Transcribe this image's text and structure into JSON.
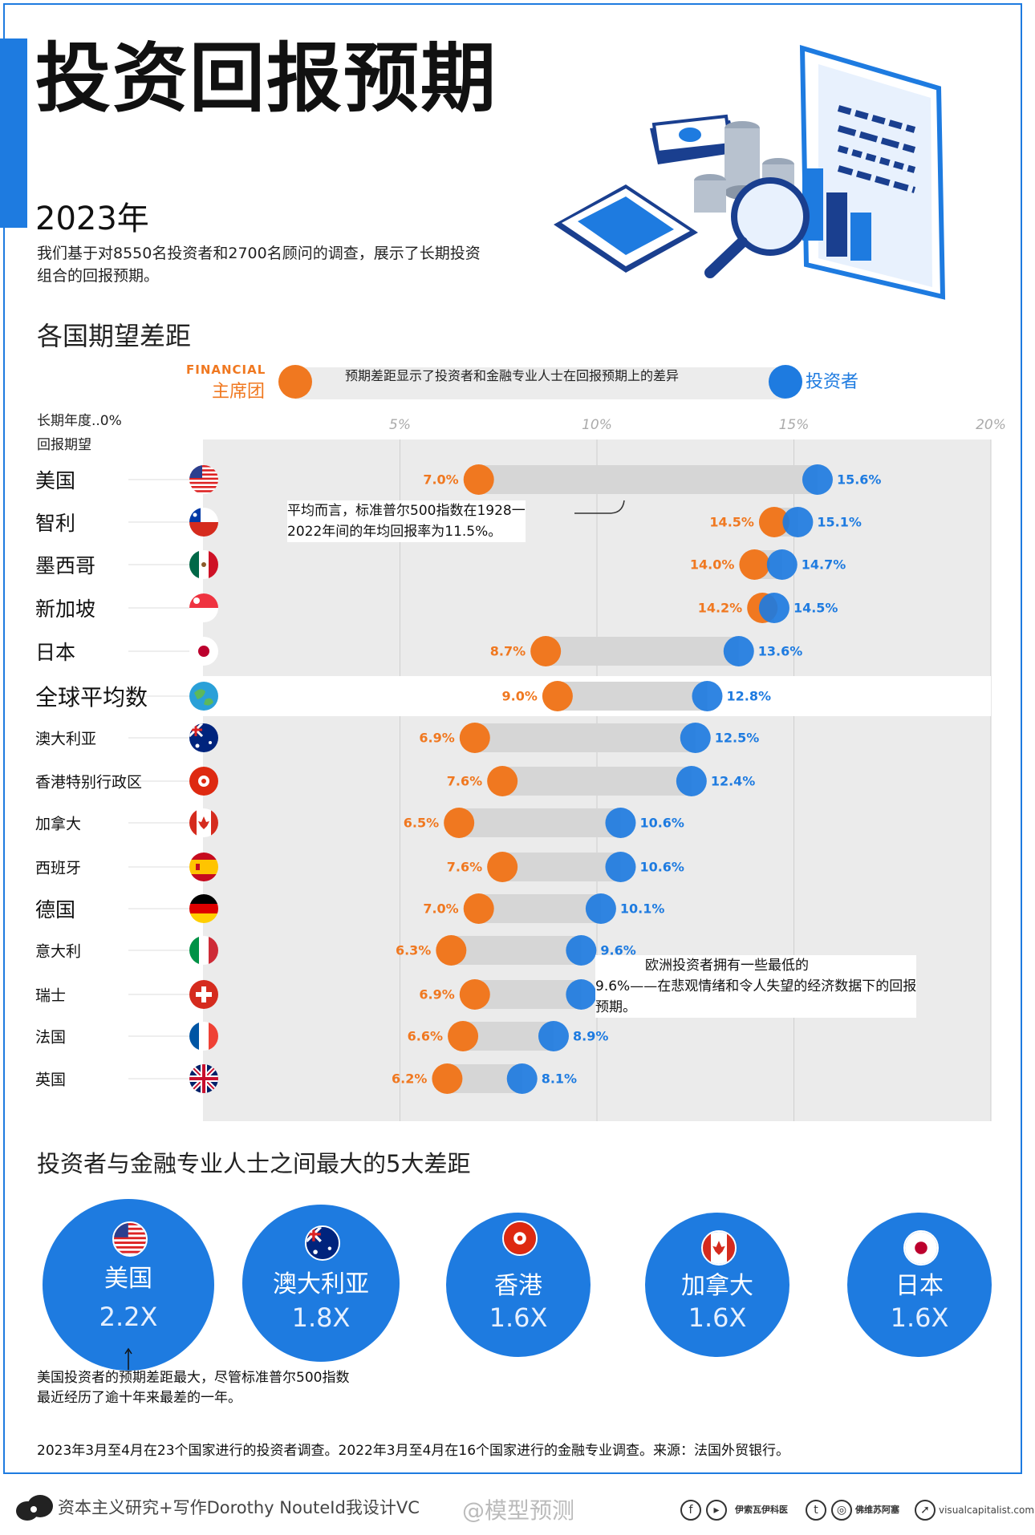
{
  "header": {
    "title": "投资回报预期",
    "year": "2023年",
    "intro": "我们基于对8550名投资者和2700名顾问的调查，展示了长期投资组合的回报预期。"
  },
  "section1_title": "各国期望差距",
  "legend": {
    "financial_en": "FINANCIAL",
    "financial_cn": "主席团",
    "description": "预期差距显示了投资者和金融专业人士在回报预期上的差异",
    "investor": "投资者",
    "colors": {
      "financial": "#f07820",
      "investor": "#1e7be0"
    }
  },
  "axis_caption": {
    "line1": "长期年度..0%",
    "line2": "回报期望"
  },
  "chart_data": {
    "type": "dumbbell",
    "xlim": [
      0,
      20
    ],
    "ticks": [
      "5%",
      "10%",
      "15%",
      "20%"
    ],
    "tick_values": [
      5,
      10,
      15,
      20
    ],
    "series": [
      {
        "name": "主席团",
        "color": "#f07820"
      },
      {
        "name": "投资者",
        "color": "#1e7be0"
      }
    ],
    "rows": [
      {
        "country": "美国",
        "flag": "us",
        "financial": 7.0,
        "investor": 15.6,
        "financial_label": "7.0%",
        "investor_label": "15.6%",
        "size": "big"
      },
      {
        "country": "智利",
        "flag": "cl",
        "financial": 14.5,
        "investor": 15.1,
        "financial_label": "14.5%",
        "investor_label": "15.1%",
        "size": "big"
      },
      {
        "country": "墨西哥",
        "flag": "mx",
        "financial": 14.0,
        "investor": 14.7,
        "financial_label": "14.0%",
        "investor_label": "14.7%",
        "size": "big"
      },
      {
        "country": "新加坡",
        "flag": "sg",
        "financial": 14.2,
        "investor": 14.5,
        "financial_label": "14.2%",
        "investor_label": "14.5%",
        "size": "big"
      },
      {
        "country": "日本",
        "flag": "jp",
        "financial": 8.7,
        "investor": 13.6,
        "financial_label": "8.7%",
        "investor_label": "13.6%",
        "size": "big"
      },
      {
        "country": "全球平均数",
        "flag": "globe",
        "financial": 9.0,
        "investor": 12.8,
        "financial_label": "9.0%",
        "investor_label": "12.8%",
        "size": "global"
      },
      {
        "country": "澳大利亚",
        "flag": "au",
        "financial": 6.9,
        "investor": 12.5,
        "financial_label": "6.9%",
        "investor_label": "12.5%",
        "size": "small"
      },
      {
        "country": "香港特别行政区",
        "flag": "hk",
        "financial": 7.6,
        "investor": 12.4,
        "financial_label": "7.6%",
        "investor_label": "12.4%",
        "size": "small"
      },
      {
        "country": "加拿大",
        "flag": "ca",
        "financial": 6.5,
        "investor": 10.6,
        "financial_label": "6.5%",
        "investor_label": "10.6%",
        "size": "small"
      },
      {
        "country": "西班牙",
        "flag": "es",
        "financial": 7.6,
        "investor": 10.6,
        "financial_label": "7.6%",
        "investor_label": "10.6%",
        "size": "small"
      },
      {
        "country": "德国",
        "flag": "de",
        "financial": 7.0,
        "investor": 10.1,
        "financial_label": "7.0%",
        "investor_label": "10.1%",
        "size": "big"
      },
      {
        "country": "意大利",
        "flag": "it",
        "financial": 6.3,
        "investor": 9.6,
        "financial_label": "6.3%",
        "investor_label": "9.6%",
        "size": "small"
      },
      {
        "country": "瑞士",
        "flag": "ch",
        "financial": 6.9,
        "investor": 9.6,
        "financial_label": "6.9%",
        "investor_label": "9.6%",
        "size": "small"
      },
      {
        "country": "法国",
        "flag": "fr",
        "financial": 6.6,
        "investor": 8.9,
        "financial_label": "6.6%",
        "investor_label": "8.9%",
        "size": "small"
      },
      {
        "country": "英国",
        "flag": "gb",
        "financial": 6.2,
        "investor": 8.1,
        "financial_label": "6.2%",
        "investor_label": "8.1%",
        "size": "small"
      }
    ],
    "annotations": [
      "平均而言，标准普尔500指数在1928一2022年间的年均回报率为11.5%。",
      "欧洲投资者拥有一些最低的9.6%——在悲观情绪和令人失望的经济数据下的回报预期。"
    ]
  },
  "annotation_lines": {
    "sp500_1": "平均而言，标准普尔500指数在1928一",
    "sp500_2": "2022年间的年均回报率为11.5%。",
    "europe_1": "欧洲投资者拥有一些最低的",
    "europe_2": "9.6%——在悲观情绪和令人失望的经济数据下的回报",
    "europe_3": "预期。"
  },
  "section2_title": "投资者与金融专业人士之间最大的5大差距",
  "top5": [
    {
      "name": "美国",
      "value": "2.2X",
      "flag": "us"
    },
    {
      "name": "澳大利亚",
      "value": "1.8X",
      "flag": "au"
    },
    {
      "name": "香港",
      "value": "1.6X",
      "flag": "hk"
    },
    {
      "name": "加拿大",
      "value": "1.6X",
      "flag": "ca"
    },
    {
      "name": "日本",
      "value": "1.6X",
      "flag": "jp"
    }
  ],
  "us_note": "美国投资者的预期差距最大，尽管标准普尔500指数最近经历了逾十年来最差的一年。",
  "footer_note": "2023年3月至4月在23个国家进行的投资者调查。2022年3月至4月在16个国家进行的金融专业调查。来源：法国外贸银行。",
  "credits": {
    "credit_text": "资本主义研究+写作Dorothy NouteId我设计VC",
    "watermark": "@模型预测",
    "social1": "伊索瓦伊科医",
    "social2": "佛维苏阿塞",
    "site": "visualcapitalist.com"
  }
}
